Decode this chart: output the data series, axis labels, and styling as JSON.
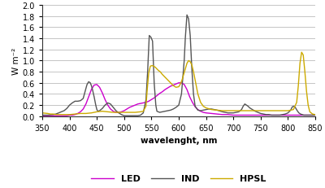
{
  "title": "",
  "xlabel": "wavelenght, nm",
  "ylabel": "W m⁻²",
  "xlim": [
    350,
    850
  ],
  "ylim": [
    0,
    2
  ],
  "yticks": [
    0,
    0.2,
    0.4,
    0.6,
    0.8,
    1.0,
    1.2,
    1.4,
    1.6,
    1.8,
    2.0
  ],
  "xticks": [
    350,
    400,
    450,
    500,
    550,
    600,
    650,
    700,
    750,
    800,
    850
  ],
  "led_color": "#cc00cc",
  "ind_color": "#555555",
  "hpsl_color": "#ccaa00",
  "background_color": "#ffffff",
  "legend_entries": [
    "LED",
    "IND",
    "HPSL"
  ],
  "led_x": [
    350,
    360,
    370,
    375,
    380,
    385,
    390,
    395,
    400,
    405,
    410,
    415,
    420,
    425,
    430,
    435,
    440,
    445,
    450,
    455,
    460,
    465,
    470,
    475,
    480,
    485,
    490,
    495,
    500,
    505,
    510,
    515,
    520,
    525,
    530,
    535,
    540,
    545,
    550,
    555,
    560,
    565,
    570,
    575,
    580,
    585,
    590,
    595,
    600,
    605,
    610,
    615,
    620,
    625,
    630,
    635,
    640,
    645,
    650,
    660,
    670,
    680,
    690,
    700,
    710,
    720,
    730,
    740,
    750,
    760,
    770,
    780,
    790,
    800,
    810,
    820,
    830,
    840,
    850
  ],
  "led_y": [
    0.01,
    0.01,
    0.01,
    0.01,
    0.01,
    0.01,
    0.01,
    0.01,
    0.02,
    0.02,
    0.03,
    0.05,
    0.08,
    0.13,
    0.22,
    0.35,
    0.48,
    0.56,
    0.57,
    0.52,
    0.42,
    0.3,
    0.2,
    0.13,
    0.09,
    0.07,
    0.07,
    0.08,
    0.1,
    0.13,
    0.16,
    0.18,
    0.2,
    0.22,
    0.23,
    0.24,
    0.25,
    0.27,
    0.3,
    0.33,
    0.37,
    0.41,
    0.44,
    0.48,
    0.51,
    0.54,
    0.56,
    0.58,
    0.6,
    0.6,
    0.57,
    0.48,
    0.35,
    0.25,
    0.17,
    0.12,
    0.09,
    0.07,
    0.06,
    0.05,
    0.04,
    0.03,
    0.03,
    0.02,
    0.02,
    0.02,
    0.02,
    0.02,
    0.02,
    0.02,
    0.02,
    0.02,
    0.02,
    0.02,
    0.02,
    0.02,
    0.02,
    0.02,
    0.02
  ],
  "ind_x": [
    350,
    360,
    370,
    375,
    380,
    385,
    390,
    395,
    400,
    405,
    410,
    415,
    420,
    425,
    430,
    432,
    435,
    438,
    440,
    442,
    445,
    448,
    450,
    452,
    455,
    460,
    465,
    470,
    475,
    480,
    485,
    490,
    495,
    500,
    505,
    510,
    515,
    520,
    525,
    530,
    535,
    540,
    543,
    546,
    549,
    552,
    555,
    558,
    560,
    565,
    570,
    575,
    580,
    585,
    590,
    595,
    600,
    605,
    610,
    612,
    615,
    618,
    621,
    624,
    627,
    630,
    635,
    640,
    645,
    650,
    655,
    660,
    665,
    670,
    680,
    690,
    700,
    710,
    715,
    718,
    721,
    724,
    727,
    730,
    735,
    740,
    745,
    750,
    755,
    760,
    765,
    770,
    775,
    780,
    785,
    790,
    795,
    800,
    805,
    808,
    811,
    814,
    817,
    820,
    823,
    826,
    829,
    832,
    835,
    840,
    845,
    850
  ],
  "ind_y": [
    0.02,
    0.02,
    0.03,
    0.04,
    0.06,
    0.08,
    0.1,
    0.14,
    0.2,
    0.24,
    0.27,
    0.27,
    0.28,
    0.32,
    0.5,
    0.57,
    0.62,
    0.6,
    0.55,
    0.48,
    0.35,
    0.2,
    0.12,
    0.09,
    0.1,
    0.14,
    0.2,
    0.24,
    0.22,
    0.16,
    0.1,
    0.06,
    0.03,
    0.01,
    0.01,
    0.01,
    0.01,
    0.01,
    0.01,
    0.02,
    0.06,
    0.3,
    0.8,
    1.45,
    1.42,
    1.35,
    0.6,
    0.2,
    0.09,
    0.07,
    0.08,
    0.09,
    0.1,
    0.11,
    0.13,
    0.16,
    0.2,
    0.4,
    1.0,
    1.4,
    1.82,
    1.75,
    1.45,
    0.85,
    0.4,
    0.18,
    0.11,
    0.1,
    0.11,
    0.12,
    0.13,
    0.13,
    0.12,
    0.11,
    0.08,
    0.06,
    0.06,
    0.08,
    0.12,
    0.18,
    0.22,
    0.2,
    0.18,
    0.15,
    0.12,
    0.09,
    0.07,
    0.05,
    0.04,
    0.03,
    0.03,
    0.02,
    0.02,
    0.02,
    0.02,
    0.03,
    0.04,
    0.06,
    0.11,
    0.17,
    0.18,
    0.15,
    0.1,
    0.06,
    0.04,
    0.03,
    0.02,
    0.02,
    0.02,
    0.02,
    0.02,
    0.02
  ],
  "hpsl_x": [
    350,
    360,
    365,
    370,
    375,
    380,
    390,
    400,
    410,
    420,
    430,
    440,
    450,
    460,
    470,
    480,
    490,
    500,
    510,
    520,
    530,
    535,
    540,
    542,
    545,
    548,
    551,
    554,
    557,
    560,
    563,
    566,
    570,
    575,
    580,
    585,
    590,
    595,
    600,
    603,
    606,
    609,
    612,
    615,
    618,
    621,
    624,
    627,
    630,
    635,
    640,
    645,
    650,
    660,
    670,
    680,
    690,
    700,
    710,
    720,
    730,
    740,
    750,
    760,
    770,
    780,
    790,
    800,
    810,
    816,
    819,
    822,
    825,
    828,
    831,
    834,
    837,
    840,
    845,
    850
  ],
  "hpsl_y": [
    0.06,
    0.05,
    0.04,
    0.04,
    0.03,
    0.03,
    0.03,
    0.03,
    0.04,
    0.05,
    0.05,
    0.06,
    0.08,
    0.09,
    0.08,
    0.07,
    0.07,
    0.07,
    0.07,
    0.07,
    0.08,
    0.09,
    0.18,
    0.45,
    0.78,
    0.9,
    0.91,
    0.9,
    0.88,
    0.85,
    0.82,
    0.8,
    0.75,
    0.7,
    0.65,
    0.6,
    0.55,
    0.52,
    0.53,
    0.58,
    0.65,
    0.75,
    0.85,
    0.95,
    1.0,
    0.98,
    0.92,
    0.8,
    0.65,
    0.4,
    0.25,
    0.18,
    0.15,
    0.12,
    0.11,
    0.1,
    0.1,
    0.1,
    0.1,
    0.1,
    0.1,
    0.1,
    0.1,
    0.1,
    0.1,
    0.1,
    0.1,
    0.1,
    0.12,
    0.25,
    0.55,
    0.95,
    1.15,
    1.1,
    0.8,
    0.45,
    0.2,
    0.08,
    0.04,
    0.03
  ]
}
